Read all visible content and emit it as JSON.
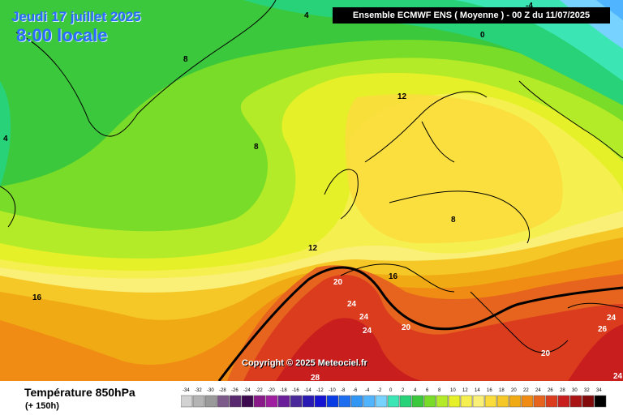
{
  "header": {
    "date_line": "Jeudi 17 juillet 2025",
    "time_line": "8:00 locale",
    "ensemble": "Ensemble ECMWF ENS  ( Moyenne )  -  00 Z du 11/07/2025"
  },
  "copyright": "Copyright © 2025 Meteociel.fr",
  "footer": {
    "variable": "Température 850hPa",
    "lead": "(+ 150h)"
  },
  "map_labels": [
    "-4",
    "4",
    "4",
    "0",
    "8",
    "12",
    "8",
    "8",
    "12",
    "16",
    "16",
    "20",
    "24",
    "24",
    "24",
    "20",
    "20",
    "28",
    "24",
    "26",
    "24"
  ],
  "legend": {
    "values": [
      -34,
      -32,
      -30,
      -28,
      -26,
      -24,
      -22,
      -20,
      -18,
      -16,
      -14,
      -12,
      -10,
      -8,
      -6,
      -4,
      -2,
      0,
      2,
      4,
      6,
      8,
      10,
      12,
      14,
      16,
      18,
      20,
      22,
      24,
      26,
      28,
      30,
      32,
      34
    ],
    "colors": [
      "#d2d2d2",
      "#b4b4b4",
      "#9a9a9a",
      "#7c5a8a",
      "#5a2a70",
      "#3d0a50",
      "#8a1a8a",
      "#a01ea0",
      "#6a1e9a",
      "#4a2a9a",
      "#2a1ab4",
      "#1414d2",
      "#0a3ce6",
      "#1e6ef0",
      "#3296f5",
      "#50b4ff",
      "#78d2ff",
      "#3ce6b4",
      "#28d278",
      "#3cc83c",
      "#78dc28",
      "#b4eb28",
      "#e6f028",
      "#f5f050",
      "#faf078",
      "#fadc3c",
      "#f5c828",
      "#f0aa14",
      "#f08c14",
      "#e6641e",
      "#dc3c1e",
      "#c81e1e",
      "#aa1414",
      "#820a0a",
      "#000000"
    ]
  }
}
